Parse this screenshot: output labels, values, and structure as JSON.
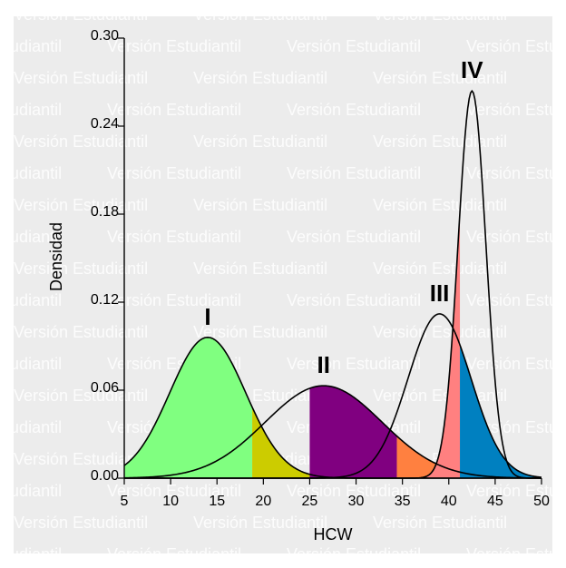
{
  "watermark": "Versión Estudiantil",
  "chart_data": {
    "type": "area",
    "xlabel": "HCW",
    "ylabel": "Densidad",
    "xlim": [
      5,
      50
    ],
    "ylim": [
      0,
      0.3
    ],
    "xticks": [
      "5",
      "10",
      "15",
      "20",
      "25",
      "30",
      "35",
      "40",
      "45",
      "50"
    ],
    "yticks": [
      "0.00",
      "0.06",
      "0.12",
      "0.18",
      "0.24",
      "0.30"
    ],
    "grid": false,
    "legend": "none",
    "series": [
      {
        "label": "I",
        "mean": 14.0,
        "sd": 4.1,
        "peak": 0.096,
        "x": [
          5,
          10,
          14,
          18,
          22,
          26,
          30
        ],
        "y": [
          0.008,
          0.056,
          0.096,
          0.06,
          0.015,
          0.002,
          0.0
        ]
      },
      {
        "label": "II",
        "mean": 26.5,
        "sd": 6.3,
        "peak": 0.063,
        "x": [
          12,
          18,
          22,
          26.5,
          31,
          36,
          42
        ],
        "y": [
          0.003,
          0.026,
          0.049,
          0.063,
          0.049,
          0.02,
          0.002
        ]
      },
      {
        "label": "III",
        "mean": 39.0,
        "sd": 3.4,
        "peak": 0.112,
        "x": [
          30,
          34,
          37,
          39,
          41,
          44,
          48
        ],
        "y": [
          0.003,
          0.037,
          0.094,
          0.112,
          0.094,
          0.037,
          0.003
        ]
      },
      {
        "label": "IV",
        "mean": 42.5,
        "sd": 1.5,
        "peak": 0.264,
        "x": [
          38,
          40,
          41.5,
          42.5,
          43.5,
          45,
          47
        ],
        "y": [
          0.003,
          0.066,
          0.212,
          0.264,
          0.212,
          0.066,
          0.003
        ]
      }
    ],
    "shaded_regions": [
      {
        "under": "I",
        "from": 5,
        "to": 18.8,
        "color": "#80ff80"
      },
      {
        "under": "I",
        "from": 18.8,
        "to": 35,
        "color": "#cccc00"
      },
      {
        "under": "II",
        "from": 25,
        "to": 34.4,
        "color": "#800080"
      },
      {
        "under": "II",
        "from": 34.4,
        "to": 50,
        "color": "#ff8040"
      },
      {
        "under": "IV",
        "from": 37,
        "to": 41.2,
        "color": "#ff8080"
      },
      {
        "under": "III",
        "from": 41.2,
        "to": 50,
        "color": "#0080c0"
      }
    ],
    "colors": {
      "background": "#ececec",
      "line": "#000000"
    }
  }
}
